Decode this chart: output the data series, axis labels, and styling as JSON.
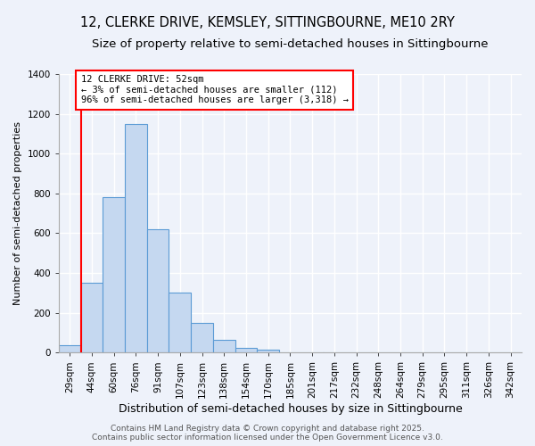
{
  "title1": "12, CLERKE DRIVE, KEMSLEY, SITTINGBOURNE, ME10 2RY",
  "title2": "Size of property relative to semi-detached houses in Sittingbourne",
  "xlabel": "Distribution of semi-detached houses by size in Sittingbourne",
  "ylabel": "Number of semi-detached properties",
  "categories": [
    "29sqm",
    "44sqm",
    "60sqm",
    "76sqm",
    "91sqm",
    "107sqm",
    "123sqm",
    "138sqm",
    "154sqm",
    "170sqm",
    "185sqm",
    "201sqm",
    "217sqm",
    "232sqm",
    "248sqm",
    "264sqm",
    "279sqm",
    "295sqm",
    "311sqm",
    "326sqm",
    "342sqm"
  ],
  "values": [
    35,
    350,
    780,
    1150,
    620,
    300,
    150,
    65,
    25,
    15,
    0,
    0,
    0,
    0,
    0,
    0,
    0,
    0,
    0,
    0,
    0
  ],
  "bar_color": "#c5d8f0",
  "bar_edge_color": "#5b9bd5",
  "red_line_x": 1.5,
  "annotation_text": "12 CLERKE DRIVE: 52sqm\n← 3% of semi-detached houses are smaller (112)\n96% of semi-detached houses are larger (3,318) →",
  "annotation_box_color": "white",
  "annotation_box_edge_color": "red",
  "ylim": [
    0,
    1400
  ],
  "yticks": [
    0,
    200,
    400,
    600,
    800,
    1000,
    1200,
    1400
  ],
  "footer_text": "Contains HM Land Registry data © Crown copyright and database right 2025.\nContains public sector information licensed under the Open Government Licence v3.0.",
  "bg_color": "#eef2fa",
  "grid_color": "white",
  "title1_fontsize": 10.5,
  "title2_fontsize": 9.5,
  "xlabel_fontsize": 9,
  "ylabel_fontsize": 8,
  "footer_fontsize": 6.5,
  "tick_fontsize": 7.5
}
